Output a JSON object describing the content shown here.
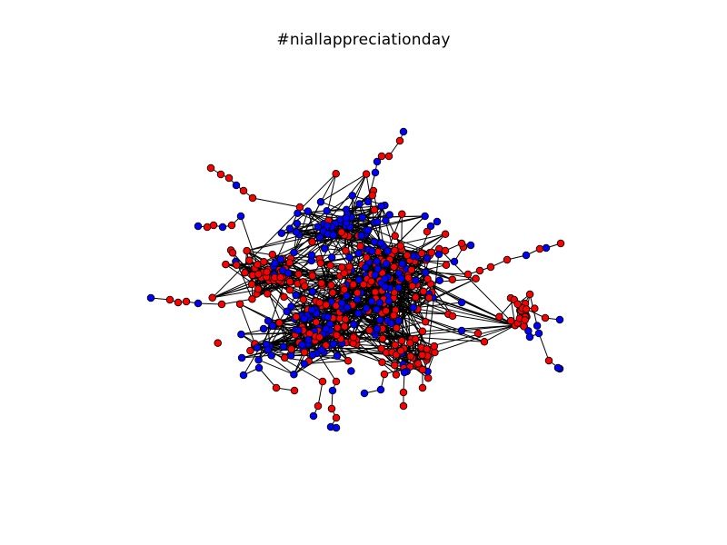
{
  "title": "#niallappreciationday",
  "colors": {
    "background": "#ffffff",
    "node_red": "#ff0000",
    "node_blue": "#0000ff",
    "node_stroke": "#000000",
    "edge": "#000000"
  },
  "chart_data": {
    "type": "network",
    "title": "#niallappreciationday",
    "node_colors": [
      "red",
      "blue"
    ],
    "axes_visible": false,
    "legend": "none"
  }
}
